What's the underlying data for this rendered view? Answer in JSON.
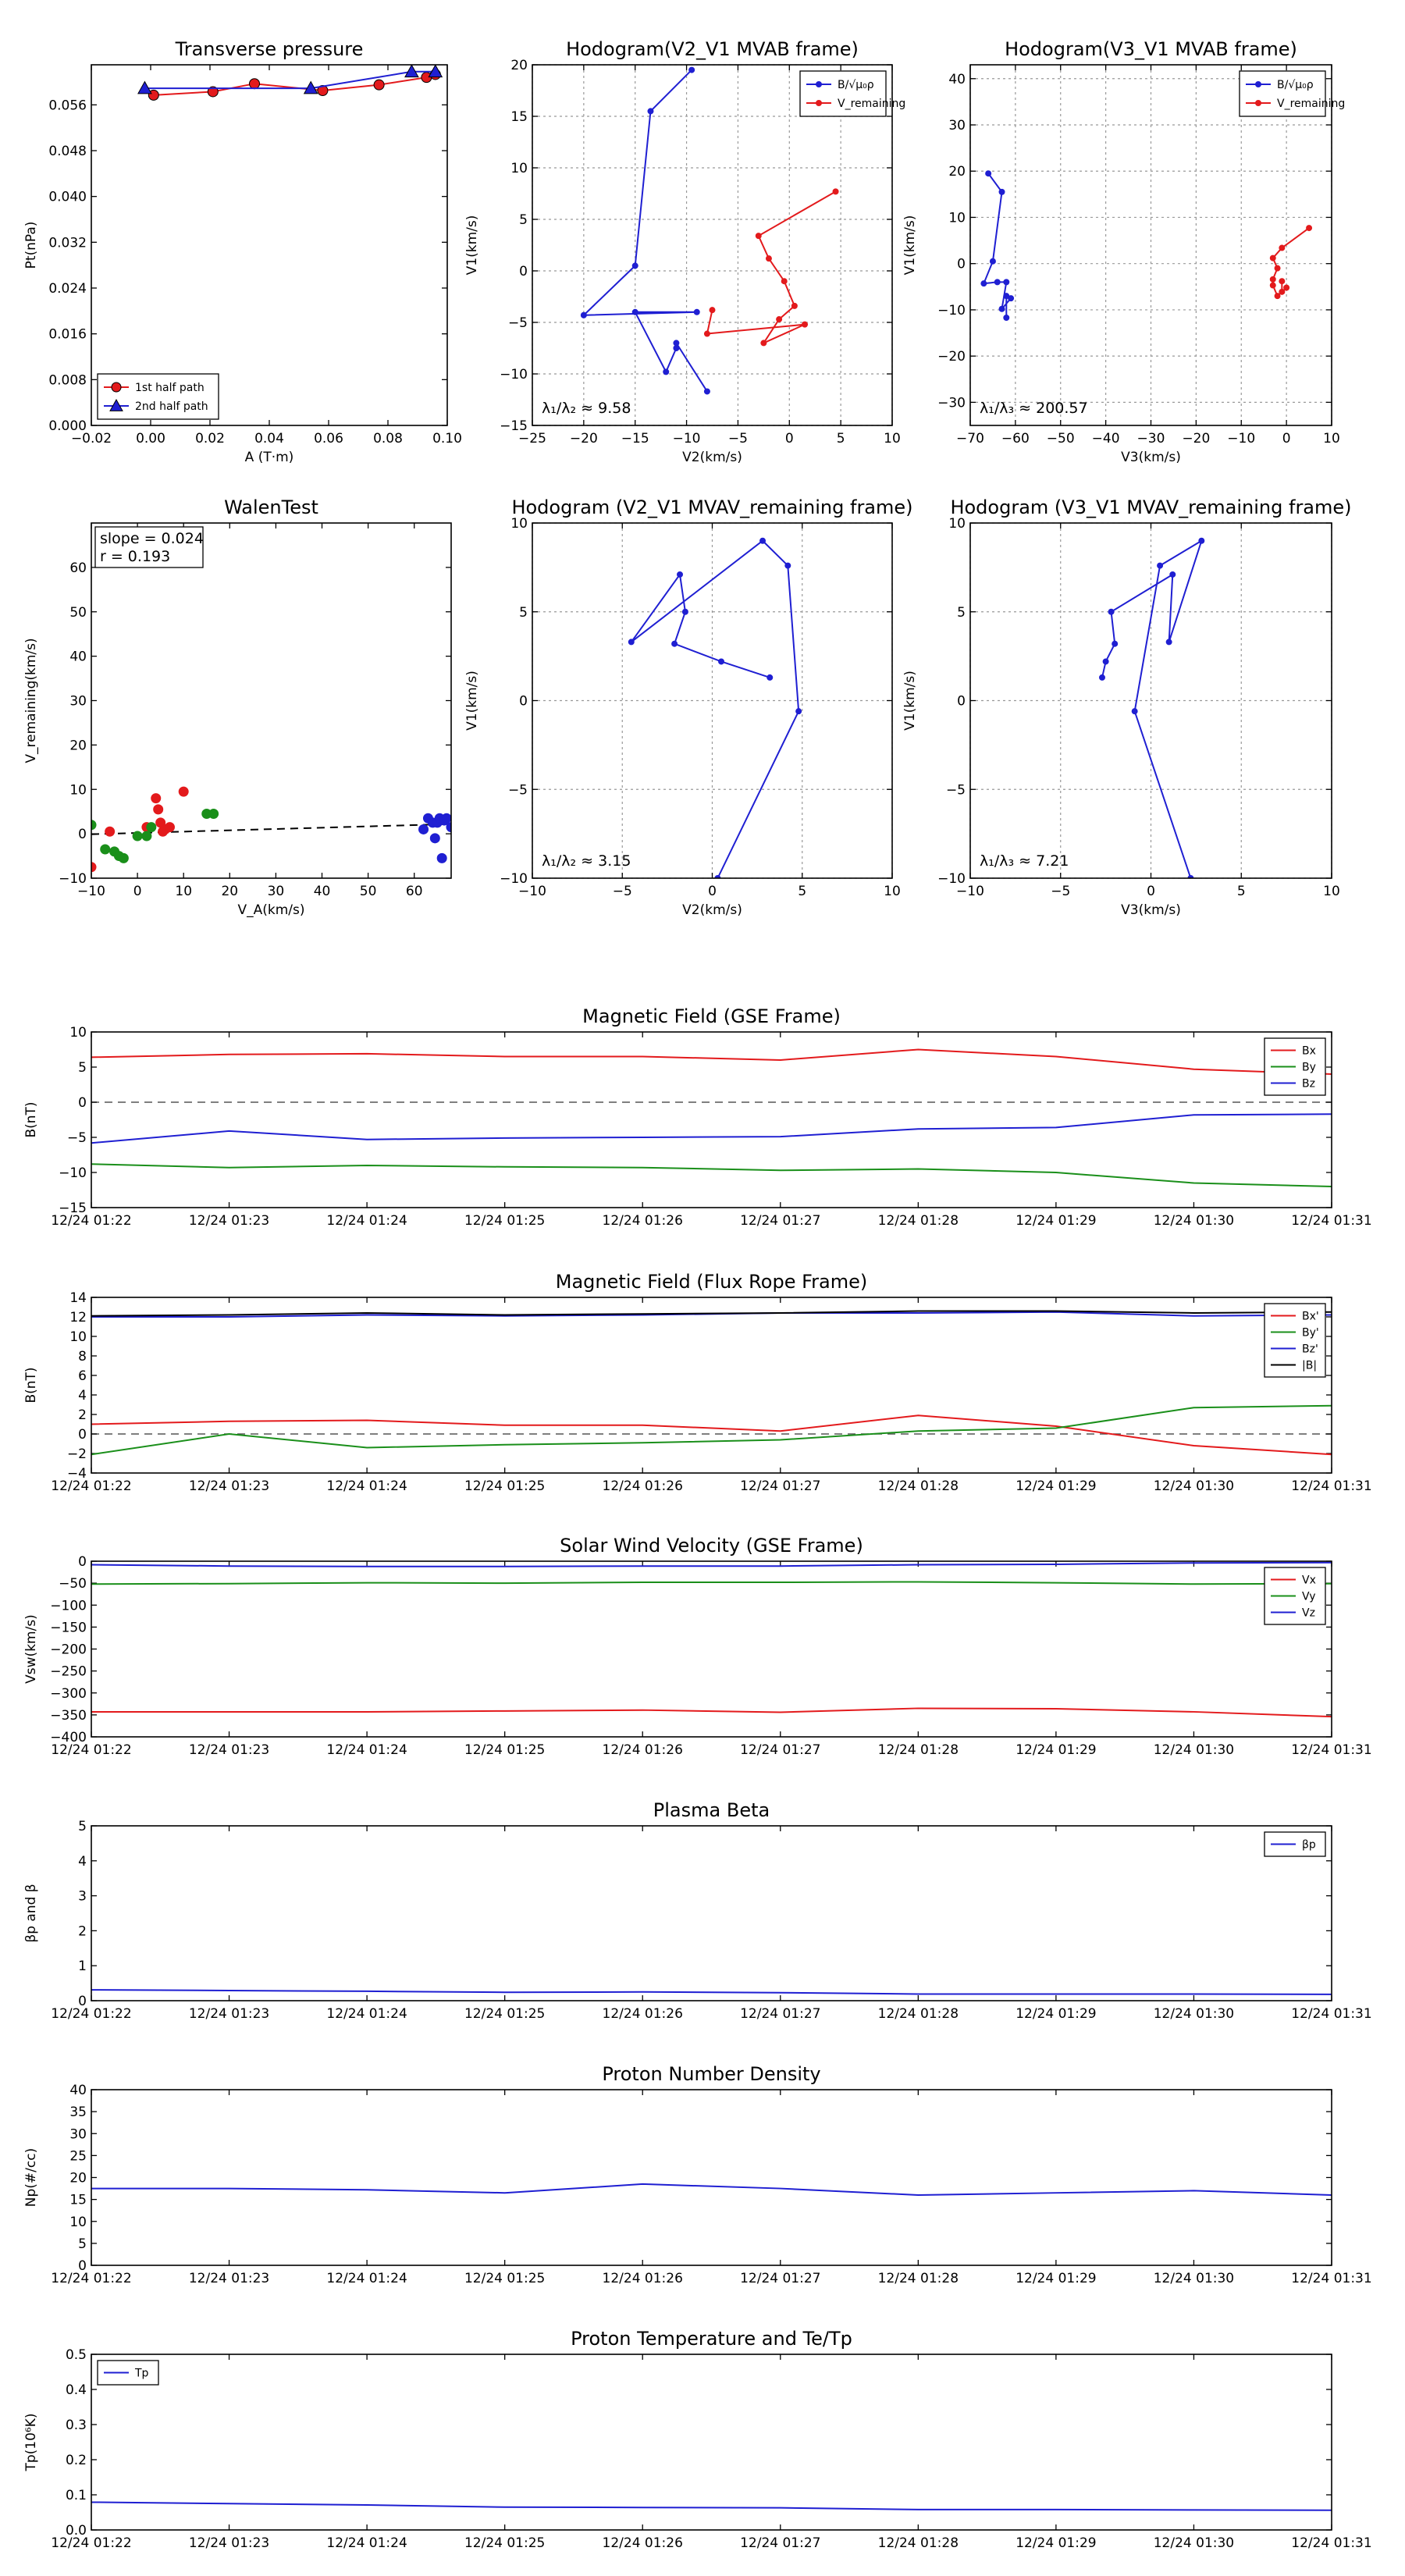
{
  "chart_data": [
    {
      "id": "pt",
      "type": "line",
      "title": "Transverse pressure",
      "xlabel": "A (T·m)",
      "ylabel": "Pt(nPa)",
      "xlim": [
        -0.02,
        0.1
      ],
      "ylim": [
        0.0,
        0.063
      ],
      "xticks": [
        -0.02,
        0.0,
        0.02,
        0.04,
        0.06,
        0.08,
        0.1
      ],
      "xtick_labels": [
        "−0.02",
        "0.00",
        "0.02",
        "0.04",
        "0.06",
        "0.08",
        "0.10"
      ],
      "yticks": [
        0.0,
        0.008,
        0.016,
        0.024,
        0.032,
        0.04,
        0.048,
        0.056
      ],
      "ytick_labels": [
        "0.000",
        "0.008",
        "0.016",
        "0.024",
        "0.032",
        "0.040",
        "0.048",
        "0.056"
      ],
      "grid": false,
      "legend": "lower-left",
      "series": [
        {
          "name": "1st half path",
          "color": "#e31a1c",
          "marker": "circle",
          "x": [
            0.001,
            0.021,
            0.035,
            0.058,
            0.077,
            0.093,
            0.096
          ],
          "y": [
            0.0577,
            0.0583,
            0.0597,
            0.0585,
            0.0595,
            0.0608,
            0.0613
          ]
        },
        {
          "name": "2nd half path",
          "color": "#1f1fd2",
          "marker": "triangle",
          "x": [
            -0.002,
            0.054,
            0.088,
            0.096
          ],
          "y": [
            0.0589,
            0.0589,
            0.0618,
            0.0618
          ]
        }
      ]
    },
    {
      "id": "hodo_v2",
      "type": "line",
      "title": "Hodogram(V2_V1 MVAB frame)",
      "xlabel": "V2(km/s)",
      "ylabel": "V1(km/s)",
      "xlim": [
        -25,
        10
      ],
      "ylim": [
        -15,
        20
      ],
      "xticks": [
        -25,
        -20,
        -15,
        -10,
        -5,
        0,
        5,
        10
      ],
      "xtick_labels": [
        "−25",
        "−20",
        "−15",
        "−10",
        "−5",
        "0",
        "5",
        "10"
      ],
      "yticks": [
        -15,
        -10,
        -5,
        0,
        5,
        10,
        15,
        20
      ],
      "ytick_labels": [
        "−15",
        "−10",
        "−5",
        "0",
        "5",
        "10",
        "15",
        "20"
      ],
      "grid": true,
      "legend": "top-right",
      "annotation": "λ₁/λ₂ ≈ 9.58",
      "series": [
        {
          "name": "B/√μ₀ρ",
          "color": "#1f1fd2",
          "marker": "circle",
          "x": [
            -9.5,
            -13.5,
            -15,
            -20,
            -9,
            -15,
            -12,
            -11,
            -11,
            -8
          ],
          "y": [
            19.5,
            15.5,
            0.5,
            -4.3,
            -4,
            -4,
            -9.8,
            -7.5,
            -7,
            -11.7
          ]
        },
        {
          "name": "V_remaining",
          "color": "#e31a1c",
          "marker": "circle",
          "x": [
            4.5,
            -3,
            -2,
            -0.5,
            0.5,
            -1,
            -2.5,
            1.5,
            -8,
            -7.5
          ],
          "y": [
            7.7,
            3.4,
            1.2,
            -1,
            -3.4,
            -4.7,
            -7,
            -5.2,
            -6.1,
            -3.8
          ]
        }
      ]
    },
    {
      "id": "hodo_v3",
      "type": "line",
      "title": "Hodogram(V3_V1 MVAB frame)",
      "xlabel": "V3(km/s)",
      "ylabel": "V1(km/s)",
      "xlim": [
        -70,
        10
      ],
      "ylim": [
        -35,
        43
      ],
      "xticks": [
        -70,
        -60,
        -50,
        -40,
        -30,
        -20,
        -10,
        0,
        10
      ],
      "xtick_labels": [
        "−70",
        "−60",
        "−50",
        "−40",
        "−30",
        "−20",
        "−10",
        "0",
        "10"
      ],
      "yticks": [
        -30,
        -20,
        -10,
        0,
        10,
        20,
        30,
        40
      ],
      "ytick_labels": [
        "−30",
        "−20",
        "−10",
        "0",
        "10",
        "20",
        "30",
        "40"
      ],
      "grid": true,
      "legend": "top-right",
      "annotation": "λ₁/λ₃ ≈ 200.57",
      "series": [
        {
          "name": "B/√μ₀ρ",
          "color": "#1f1fd2",
          "marker": "circle",
          "x": [
            -66,
            -63,
            -65,
            -67,
            -64,
            -62,
            -63,
            -61,
            -62,
            -62
          ],
          "y": [
            19.5,
            15.5,
            0.5,
            -4.3,
            -4,
            -4,
            -9.8,
            -7.5,
            -7,
            -11.7
          ]
        },
        {
          "name": "V_remaining",
          "color": "#e31a1c",
          "marker": "circle",
          "x": [
            5,
            -1,
            -3,
            -2,
            -3,
            -3,
            -2,
            0,
            -1,
            -1
          ],
          "y": [
            7.7,
            3.4,
            1.2,
            -1,
            -3.4,
            -4.7,
            -7,
            -5.2,
            -6.1,
            -3.8
          ]
        }
      ]
    },
    {
      "id": "walen",
      "type": "scatter",
      "title": "WalenTest",
      "xlabel": "V_A(km/s)",
      "ylabel": "V_remaining(km/s)",
      "xlim": [
        -10,
        68
      ],
      "ylim": [
        -10,
        70
      ],
      "xticks": [
        -10,
        0,
        10,
        20,
        30,
        40,
        50,
        60
      ],
      "xtick_labels": [
        "−10",
        "0",
        "10",
        "20",
        "30",
        "40",
        "50",
        "60"
      ],
      "yticks": [
        -10,
        0,
        10,
        20,
        30,
        40,
        50,
        60
      ],
      "ytick_labels": [
        "−10",
        "0",
        "10",
        "20",
        "30",
        "40",
        "50",
        "60"
      ],
      "grid": false,
      "annotation_lines": [
        "slope = 0.024",
        "r = 0.193"
      ],
      "fit_line": {
        "x": [
          -10,
          68
        ],
        "y": [
          -0.1,
          2.2
        ]
      },
      "series": [
        {
          "name": "red",
          "color": "#e31a1c",
          "x": [
            -10,
            -6,
            2,
            4,
            4.5,
            5,
            5.5,
            6,
            7,
            10
          ],
          "y": [
            -7.5,
            0.5,
            1.5,
            8,
            5.5,
            2.5,
            0.5,
            1,
            1.5,
            9.5
          ]
        },
        {
          "name": "green",
          "color": "#1a8f1a",
          "x": [
            -10,
            -7,
            -5,
            -4,
            -3,
            0,
            2,
            3,
            15,
            16.5
          ],
          "y": [
            2,
            -3.5,
            -4,
            -5,
            -5.5,
            -0.5,
            -0.5,
            1.5,
            4.5,
            4.5
          ]
        },
        {
          "name": "blue",
          "color": "#1f1fd2",
          "x": [
            62,
            63,
            64,
            64.5,
            65,
            65.5,
            66,
            66.5,
            67,
            68
          ],
          "y": [
            1,
            3.5,
            2.5,
            -1,
            2.5,
            3.5,
            -5.5,
            3,
            3.5,
            1.5
          ]
        }
      ]
    },
    {
      "id": "hodo_v2_rem",
      "type": "line",
      "title": "Hodogram (V2_V1 MVAV_remaining frame)",
      "xlabel": "V2(km/s)",
      "ylabel": "V1(km/s)",
      "xlim": [
        -10,
        10
      ],
      "ylim": [
        -10,
        10
      ],
      "xticks": [
        -10,
        -5,
        0,
        5,
        10
      ],
      "xtick_labels": [
        "−10",
        "−5",
        "0",
        "5",
        "10"
      ],
      "yticks": [
        -10,
        -5,
        0,
        5,
        10
      ],
      "ytick_labels": [
        "−10",
        "−5",
        "0",
        "5",
        "10"
      ],
      "grid": true,
      "annotation": "λ₁/λ₂ ≈ 3.15",
      "series": [
        {
          "name": "path",
          "color": "#1f1fd2",
          "marker": "circle",
          "x": [
            0.3,
            4.8,
            4.2,
            2.8,
            -4.5,
            -1.8,
            -1.5,
            -2.1,
            0.5,
            3.2
          ],
          "y": [
            -10,
            -0.6,
            7.6,
            9,
            3.3,
            7.1,
            5,
            3.2,
            2.2,
            1.3
          ]
        }
      ]
    },
    {
      "id": "hodo_v3_rem",
      "type": "line",
      "title": "Hodogram (V3_V1 MVAV_remaining frame)",
      "xlabel": "V3(km/s)",
      "ylabel": "V1(km/s)",
      "xlim": [
        -10,
        10
      ],
      "ylim": [
        -10,
        10
      ],
      "xticks": [
        -10,
        -5,
        0,
        5,
        10
      ],
      "xtick_labels": [
        "−10",
        "−5",
        "0",
        "5",
        "10"
      ],
      "yticks": [
        -10,
        -5,
        0,
        5,
        10
      ],
      "ytick_labels": [
        "−10",
        "−5",
        "0",
        "5",
        "10"
      ],
      "grid": true,
      "annotation": "λ₁/λ₃ ≈ 7.21",
      "series": [
        {
          "name": "path",
          "color": "#1f1fd2",
          "marker": "circle",
          "x": [
            2.2,
            -0.9,
            0.5,
            2.8,
            1,
            1.2,
            -2.2,
            -2,
            -2.5,
            -2.7
          ],
          "y": [
            -10,
            -0.6,
            7.6,
            9,
            3.3,
            7.1,
            5,
            3.2,
            2.2,
            1.3
          ]
        }
      ]
    },
    {
      "id": "bgse",
      "type": "line",
      "title": "Magnetic Field (GSE Frame)",
      "ylabel": "B(nT)",
      "ylim": [
        -15,
        10
      ],
      "yticks": [
        -15,
        -10,
        -5,
        0,
        5,
        10
      ],
      "ytick_labels": [
        "−15",
        "−10",
        "−5",
        "0",
        "5",
        "10"
      ],
      "x_labels": [
        "12/24 01:22",
        "12/24 01:23",
        "12/24 01:24",
        "12/24 01:25",
        "12/24 01:26",
        "12/24 01:27",
        "12/24 01:28",
        "12/24 01:29",
        "12/24 01:30",
        "12/24 01:31"
      ],
      "zero_line": true,
      "legend": "top-right",
      "series": [
        {
          "name": "Bx",
          "color": "#e31a1c",
          "values": [
            6.4,
            6.8,
            6.9,
            6.5,
            6.5,
            6.0,
            7.5,
            6.5,
            4.7,
            4.0
          ]
        },
        {
          "name": "By",
          "color": "#1a8f1a",
          "values": [
            -8.8,
            -9.3,
            -9.0,
            -9.2,
            -9.3,
            -9.7,
            -9.5,
            -10.0,
            -11.5,
            -12.0
          ]
        },
        {
          "name": "Bz",
          "color": "#1f1fd2",
          "values": [
            -5.8,
            -4.1,
            -5.3,
            -5.1,
            -5.0,
            -4.9,
            -3.8,
            -3.6,
            -1.8,
            -1.7
          ]
        }
      ]
    },
    {
      "id": "bfr",
      "type": "line",
      "title": "Magnetic Field (Flux Rope Frame)",
      "ylabel": "B(nT)",
      "ylim": [
        -4,
        14
      ],
      "yticks": [
        -4,
        -2,
        0,
        2,
        4,
        6,
        8,
        10,
        12,
        14
      ],
      "ytick_labels": [
        "−4",
        "−2",
        "0",
        "2",
        "4",
        "6",
        "8",
        "10",
        "12",
        "14"
      ],
      "x_labels": [
        "12/24 01:22",
        "12/24 01:23",
        "12/24 01:24",
        "12/24 01:25",
        "12/24 01:26",
        "12/24 01:27",
        "12/24 01:28",
        "12/24 01:29",
        "12/24 01:30",
        "12/24 01:31"
      ],
      "zero_line": true,
      "legend": "top-right",
      "series": [
        {
          "name": "Bx'",
          "color": "#e31a1c",
          "values": [
            1.0,
            1.3,
            1.4,
            0.9,
            0.9,
            0.3,
            1.9,
            0.8,
            -1.2,
            -2.1
          ]
        },
        {
          "name": "By'",
          "color": "#1a8f1a",
          "values": [
            -2.1,
            0.0,
            -1.4,
            -1.1,
            -0.9,
            -0.6,
            0.3,
            0.6,
            2.7,
            2.9
          ]
        },
        {
          "name": "Bz'",
          "color": "#1f1fd2",
          "values": [
            12.0,
            12.0,
            12.2,
            12.1,
            12.2,
            12.4,
            12.4,
            12.5,
            12.1,
            12.2
          ]
        },
        {
          "name": "|B|",
          "color": "#000000",
          "values": [
            12.1,
            12.2,
            12.4,
            12.2,
            12.3,
            12.4,
            12.6,
            12.6,
            12.4,
            12.5
          ]
        }
      ]
    },
    {
      "id": "vsw",
      "type": "line",
      "title": "Solar Wind Velocity (GSE Frame)",
      "ylabel": "Vsw(km/s)",
      "ylim": [
        -400,
        0
      ],
      "yticks": [
        -400,
        -350,
        -300,
        -250,
        -200,
        -150,
        -100,
        -50,
        0
      ],
      "ytick_labels": [
        "−400",
        "−350",
        "−300",
        "−250",
        "−200",
        "−150",
        "−100",
        "−50",
        "0"
      ],
      "x_labels": [
        "12/24 01:22",
        "12/24 01:23",
        "12/24 01:24",
        "12/24 01:25",
        "12/24 01:26",
        "12/24 01:27",
        "12/24 01:28",
        "12/24 01:29",
        "12/24 01:30",
        "12/24 01:31"
      ],
      "legend": "top-right",
      "series": [
        {
          "name": "Vx",
          "color": "#e31a1c",
          "values": [
            -343,
            -343,
            -343,
            -341,
            -339,
            -344,
            -335,
            -336,
            -343,
            -354
          ]
        },
        {
          "name": "Vy",
          "color": "#1a8f1a",
          "values": [
            -52,
            -51,
            -49,
            -50,
            -48,
            -48,
            -47,
            -49,
            -52,
            -51
          ]
        },
        {
          "name": "Vz",
          "color": "#1f1fd2",
          "values": [
            -8,
            -11,
            -12,
            -12,
            -11,
            -11,
            -8,
            -7,
            -4,
            -3
          ]
        }
      ]
    },
    {
      "id": "beta",
      "type": "line",
      "title": "Plasma Beta",
      "ylabel": "βp and β",
      "ylim": [
        0,
        5
      ],
      "yticks": [
        0,
        1,
        2,
        3,
        4,
        5
      ],
      "ytick_labels": [
        "0",
        "1",
        "2",
        "3",
        "4",
        "5"
      ],
      "x_labels": [
        "12/24 01:22",
        "12/24 01:23",
        "12/24 01:24",
        "12/24 01:25",
        "12/24 01:26",
        "12/24 01:27",
        "12/24 01:28",
        "12/24 01:29",
        "12/24 01:30",
        "12/24 01:31"
      ],
      "legend": "top-right",
      "series": [
        {
          "name": "βp",
          "color": "#1f1fd2",
          "values": [
            0.31,
            0.29,
            0.27,
            0.24,
            0.25,
            0.23,
            0.19,
            0.19,
            0.19,
            0.18
          ]
        }
      ]
    },
    {
      "id": "np",
      "type": "line",
      "title": "Proton Number Density",
      "ylabel": "Np(#/cc)",
      "ylim": [
        0,
        40
      ],
      "yticks": [
        0,
        5,
        10,
        15,
        20,
        25,
        30,
        35,
        40
      ],
      "ytick_labels": [
        "0",
        "5",
        "10",
        "15",
        "20",
        "25",
        "30",
        "35",
        "40"
      ],
      "x_labels": [
        "12/24 01:22",
        "12/24 01:23",
        "12/24 01:24",
        "12/24 01:25",
        "12/24 01:26",
        "12/24 01:27",
        "12/24 01:28",
        "12/24 01:29",
        "12/24 01:30",
        "12/24 01:31"
      ],
      "series": [
        {
          "name": "Np",
          "color": "#1f1fd2",
          "values": [
            17.5,
            17.5,
            17.2,
            16.5,
            18.5,
            17.5,
            16.0,
            16.5,
            17.0,
            16.0
          ]
        }
      ]
    },
    {
      "id": "tp",
      "type": "line",
      "title": "Proton Temperature and Te/Tp",
      "ylabel": "Tp(10⁶K)",
      "ylim": [
        0,
        0.5
      ],
      "yticks": [
        0,
        0.1,
        0.2,
        0.3,
        0.4,
        0.5
      ],
      "ytick_labels": [
        "0.0",
        "0.1",
        "0.2",
        "0.3",
        "0.4",
        "0.5"
      ],
      "x_labels": [
        "12/24 01:22",
        "12/24 01:23",
        "12/24 01:24",
        "12/24 01:25",
        "12/24 01:26",
        "12/24 01:27",
        "12/24 01:28",
        "12/24 01:29",
        "12/24 01:30",
        "12/24 01:31"
      ],
      "legend": "top-left",
      "series": [
        {
          "name": "Tp",
          "color": "#1f1fd2",
          "values": [
            0.079,
            0.075,
            0.071,
            0.065,
            0.064,
            0.063,
            0.058,
            0.058,
            0.057,
            0.056
          ]
        }
      ]
    }
  ]
}
